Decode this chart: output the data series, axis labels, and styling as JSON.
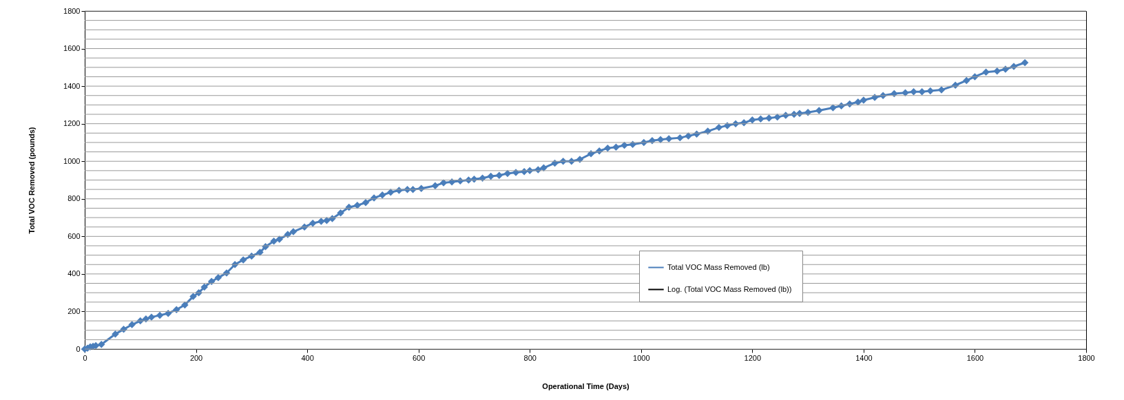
{
  "chart_data": {
    "type": "line",
    "xlabel": "Operational Time (Days)",
    "ylabel": "Total VOC Removed (pounds)",
    "xlim": [
      0,
      1800
    ],
    "xticks": [
      0,
      200,
      400,
      600,
      800,
      1000,
      1200,
      1400,
      1600,
      1800
    ],
    "ylim": [
      0,
      1800
    ],
    "yticks": [
      0,
      {
        "value": 50,
        "label": null
      },
      {
        "value": 100,
        "label": null
      },
      {
        "value": 150,
        "label": null
      },
      200,
      {
        "value": 250,
        "label": null
      },
      {
        "value": 300,
        "label": null
      },
      {
        "value": 350,
        "label": null
      },
      400,
      {
        "value": 450,
        "label": null
      },
      {
        "value": 500,
        "label": null
      },
      {
        "value": 550,
        "label": null
      },
      600,
      {
        "value": 650,
        "label": null
      },
      {
        "value": 700,
        "label": null
      },
      {
        "value": 750,
        "label": null
      },
      800,
      {
        "value": 850,
        "label": null
      },
      {
        "value": 900,
        "label": null
      },
      {
        "value": 950,
        "label": null
      },
      1000,
      {
        "value": 1050,
        "label": null
      },
      {
        "value": 1100,
        "label": null
      },
      {
        "value": 1150,
        "label": null
      },
      1200,
      {
        "value": 1250,
        "label": null
      },
      {
        "value": 1300,
        "label": null
      },
      {
        "value": 1350,
        "label": null
      },
      1400,
      {
        "value": 1450,
        "label": null
      },
      {
        "value": 1500,
        "label": null
      },
      {
        "value": 1550,
        "label": null
      },
      1600,
      {
        "value": 1650,
        "label": null
      },
      {
        "value": 1700,
        "label": null
      },
      {
        "value": 1750,
        "label": null
      },
      1800
    ],
    "grid": "y",
    "legend": "bottom right",
    "marker": "diamond",
    "line_style": "solid",
    "series": [
      {
        "name": "Total VOC Mass Removed  (lb)",
        "color": "#4a7ebb",
        "x": [
          0,
          5,
          10,
          15,
          20,
          30,
          55,
          70,
          85,
          100,
          110,
          120,
          135,
          150,
          165,
          180,
          195,
          205,
          215,
          228,
          240,
          255,
          270,
          285,
          300,
          315,
          325,
          340,
          350,
          365,
          375,
          395,
          410,
          425,
          435,
          445,
          460,
          475,
          490,
          505,
          520,
          535,
          550,
          565,
          580,
          590,
          605,
          630,
          645,
          660,
          675,
          690,
          700,
          715,
          730,
          745,
          760,
          775,
          790,
          800,
          815,
          825,
          845,
          860,
          875,
          890,
          910,
          925,
          940,
          955,
          970,
          985,
          1005,
          1020,
          1035,
          1050,
          1070,
          1085,
          1100,
          1120,
          1140,
          1155,
          1170,
          1185,
          1200,
          1215,
          1230,
          1245,
          1260,
          1275,
          1285,
          1300,
          1320,
          1345,
          1360,
          1375,
          1390,
          1400,
          1420,
          1435,
          1455,
          1475,
          1490,
          1505,
          1520,
          1540,
          1565,
          1585,
          1600,
          1620,
          1640,
          1655,
          1670,
          1690
        ],
        "values": [
          0,
          5,
          12,
          15,
          18,
          25,
          80,
          105,
          130,
          150,
          160,
          170,
          180,
          190,
          210,
          235,
          280,
          300,
          330,
          360,
          380,
          405,
          450,
          475,
          495,
          515,
          545,
          575,
          585,
          610,
          625,
          650,
          670,
          680,
          685,
          695,
          725,
          755,
          765,
          780,
          805,
          820,
          835,
          845,
          850,
          850,
          855,
          870,
          885,
          890,
          895,
          900,
          905,
          910,
          920,
          925,
          935,
          940,
          945,
          950,
          955,
          965,
          990,
          1000,
          1000,
          1010,
          1040,
          1055,
          1070,
          1075,
          1085,
          1090,
          1100,
          1110,
          1115,
          1120,
          1125,
          1135,
          1145,
          1160,
          1180,
          1190,
          1200,
          1205,
          1220,
          1225,
          1230,
          1235,
          1245,
          1250,
          1255,
          1260,
          1270,
          1285,
          1295,
          1305,
          1315,
          1325,
          1340,
          1350,
          1360,
          1365,
          1370,
          1370,
          1375,
          1380,
          1405,
          1430,
          1450,
          1475,
          1480,
          1490,
          1505,
          1525
        ]
      },
      {
        "name": "Log. (Total VOC Mass Removed  (lb))",
        "color": "#000000"
      }
    ]
  }
}
